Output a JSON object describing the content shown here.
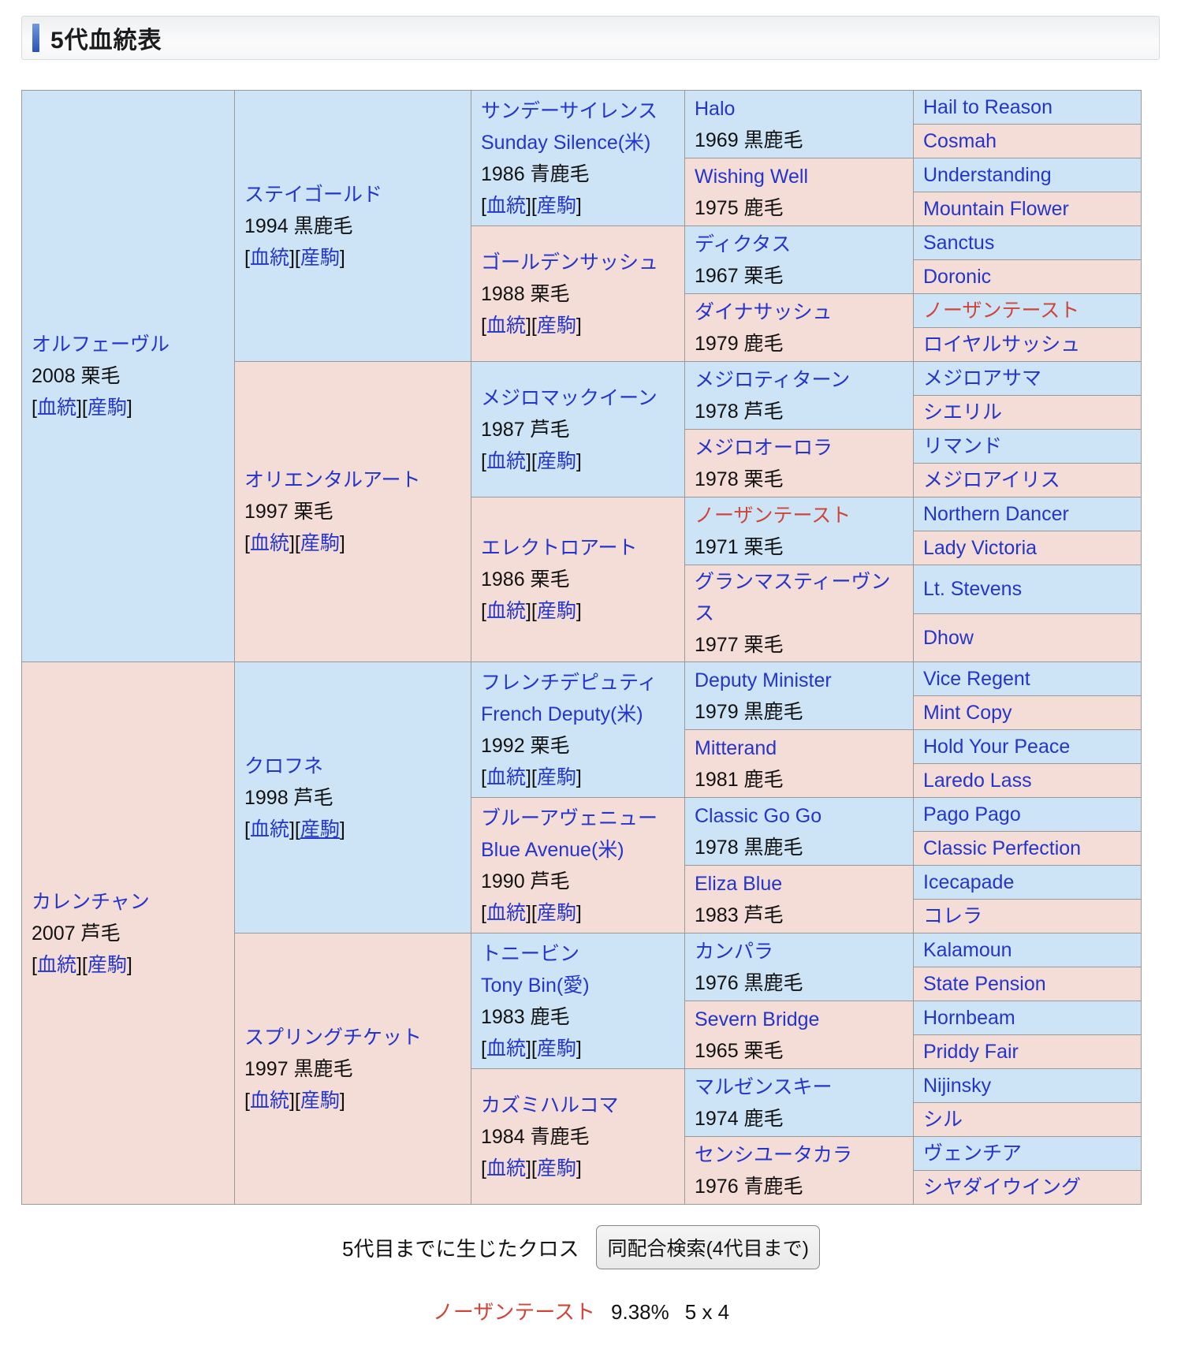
{
  "title": "5代血統表",
  "colors": {
    "sire_bg": "#cde4f6",
    "dam_bg": "#f4dcd7",
    "link_blue": "#2435c9",
    "duplicate_red": "#cf453a",
    "cell_border": "#999999"
  },
  "pedigree": {
    "blood_label": "血統",
    "offspring_label": "産駒",
    "generations": [
      [
        {
          "name": "オルフェーヴル",
          "info": "2008 栗毛",
          "side": "sire",
          "links": true
        },
        {
          "name": "カレンチャン",
          "info": "2007 芦毛",
          "side": "dam",
          "links": true
        }
      ],
      [
        {
          "name": "ステイゴールド",
          "info": "1994 黒鹿毛",
          "side": "sire",
          "links": true
        },
        {
          "name": "オリエンタルアート",
          "info": "1997 栗毛",
          "side": "dam",
          "links": true
        },
        {
          "name": "クロフネ",
          "info": "1998 芦毛",
          "side": "sire",
          "links": true,
          "underline_offspring": true
        },
        {
          "name": "スプリングチケット",
          "info": "1997 黒鹿毛",
          "side": "dam",
          "links": true
        }
      ],
      [
        {
          "name": "サンデーサイレンス",
          "name_en": "Sunday Silence(米)",
          "info": "1986 青鹿毛",
          "side": "sire",
          "links": true
        },
        {
          "name": "ゴールデンサッシュ",
          "info": "1988 栗毛",
          "side": "dam",
          "links": true
        },
        {
          "name": "メジロマックイーン",
          "info": "1987 芦毛",
          "side": "sire",
          "links": true
        },
        {
          "name": "エレクトロアート",
          "info": "1986 栗毛",
          "side": "dam",
          "links": true
        },
        {
          "name": "フレンチデピュティ",
          "name_en": "French Deputy(米)",
          "info": "1992 栗毛",
          "side": "sire",
          "links": true
        },
        {
          "name": "ブルーアヴェニュー",
          "name_en": "Blue Avenue(米)",
          "info": "1990 芦毛",
          "side": "dam",
          "links": true
        },
        {
          "name": "トニービン",
          "name_en": "Tony Bin(愛)",
          "info": "1983 鹿毛",
          "side": "sire",
          "links": true
        },
        {
          "name": "カズミハルコマ",
          "info": "1984 青鹿毛",
          "side": "dam",
          "links": true
        }
      ],
      [
        {
          "name": "Halo",
          "info": "1969 黒鹿毛",
          "side": "sire"
        },
        {
          "name": "Wishing Well",
          "info": "1975 鹿毛",
          "side": "dam"
        },
        {
          "name": "ディクタス",
          "info": "1967 栗毛",
          "side": "sire"
        },
        {
          "name": "ダイナサッシュ",
          "info": "1979 鹿毛",
          "side": "dam"
        },
        {
          "name": "メジロティターン",
          "info": "1978 芦毛",
          "side": "sire"
        },
        {
          "name": "メジロオーロラ",
          "info": "1978 栗毛",
          "side": "dam"
        },
        {
          "name": "ノーザンテースト",
          "info": "1971 栗毛",
          "side": "sire",
          "red": true
        },
        {
          "name": "グランマスティーヴンス",
          "info": "1977 栗毛",
          "side": "dam"
        },
        {
          "name": "Deputy Minister",
          "info": "1979 黒鹿毛",
          "side": "sire"
        },
        {
          "name": "Mitterand",
          "info": "1981 鹿毛",
          "side": "dam"
        },
        {
          "name": "Classic Go Go",
          "info": "1978 黒鹿毛",
          "side": "sire"
        },
        {
          "name": "Eliza Blue",
          "info": "1983 芦毛",
          "side": "dam"
        },
        {
          "name": "カンパラ",
          "info": "1976 黒鹿毛",
          "side": "sire"
        },
        {
          "name": "Severn Bridge",
          "info": "1965 栗毛",
          "side": "dam"
        },
        {
          "name": "マルゼンスキー",
          "info": "1974 鹿毛",
          "side": "sire"
        },
        {
          "name": "センシユータカラ",
          "info": "1976 青鹿毛",
          "side": "dam"
        }
      ],
      [
        {
          "name": "Hail to Reason",
          "side": "sire"
        },
        {
          "name": "Cosmah",
          "side": "dam"
        },
        {
          "name": "Understanding",
          "side": "sire"
        },
        {
          "name": "Mountain Flower",
          "side": "dam"
        },
        {
          "name": "Sanctus",
          "side": "sire"
        },
        {
          "name": "Doronic",
          "side": "dam"
        },
        {
          "name": "ノーザンテースト",
          "side": "sire",
          "red": true
        },
        {
          "name": "ロイヤルサッシュ",
          "side": "dam"
        },
        {
          "name": "メジロアサマ",
          "side": "sire"
        },
        {
          "name": "シエリル",
          "side": "dam"
        },
        {
          "name": "リマンド",
          "side": "sire"
        },
        {
          "name": "メジロアイリス",
          "side": "dam"
        },
        {
          "name": "Northern Dancer",
          "side": "sire"
        },
        {
          "name": "Lady Victoria",
          "side": "dam"
        },
        {
          "name": "Lt. Stevens",
          "side": "sire"
        },
        {
          "name": "Dhow",
          "side": "dam"
        },
        {
          "name": "Vice Regent",
          "side": "sire"
        },
        {
          "name": "Mint Copy",
          "side": "dam"
        },
        {
          "name": "Hold Your Peace",
          "side": "sire"
        },
        {
          "name": "Laredo Lass",
          "side": "dam"
        },
        {
          "name": "Pago Pago",
          "side": "sire"
        },
        {
          "name": "Classic Perfection",
          "side": "dam"
        },
        {
          "name": "Icecapade",
          "side": "sire"
        },
        {
          "name": "コレラ",
          "side": "dam"
        },
        {
          "name": "Kalamoun",
          "side": "sire"
        },
        {
          "name": "State Pension",
          "side": "dam"
        },
        {
          "name": "Hornbeam",
          "side": "sire"
        },
        {
          "name": "Priddy Fair",
          "side": "dam"
        },
        {
          "name": "Nijinsky",
          "side": "sire"
        },
        {
          "name": "シル",
          "side": "dam"
        },
        {
          "name": "ヴェンチア",
          "side": "sire"
        },
        {
          "name": "シヤダイウイング",
          "side": "dam"
        }
      ]
    ]
  },
  "footer": {
    "cross_label": "5代目までに生じたクロス",
    "search_button": "同配合検索(4代目まで)",
    "cross_name": "ノーザンテースト",
    "cross_value": "9.38%",
    "cross_pattern": "5 x 4"
  }
}
